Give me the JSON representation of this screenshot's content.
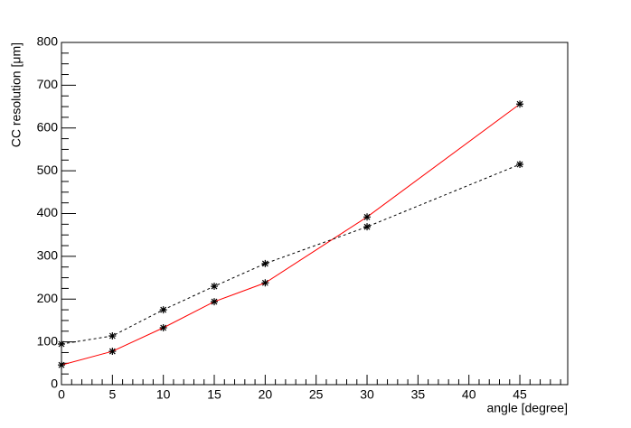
{
  "chart_data": {
    "type": "line",
    "xlabel": "angle [degree]",
    "ylabel": "CC resolution [μm]",
    "x": [
      0,
      5,
      10,
      15,
      20,
      30,
      45
    ],
    "series": [
      {
        "color": "#ff0000",
        "line_style": "solid",
        "marker_color": "#000000",
        "values": [
          46,
          78,
          133,
          194,
          238,
          392,
          656
        ]
      },
      {
        "color": "#000000",
        "line_style": "dashed",
        "marker_color": "#000000",
        "values": [
          95,
          114,
          175,
          230,
          283,
          369,
          515
        ]
      }
    ],
    "xlim": [
      0,
      49.7
    ],
    "ylim": [
      0,
      800
    ],
    "xticks": [
      0,
      5,
      10,
      15,
      20,
      25,
      30,
      35,
      40,
      45
    ],
    "yticks": [
      0,
      100,
      200,
      300,
      400,
      500,
      600,
      700,
      800
    ]
  }
}
